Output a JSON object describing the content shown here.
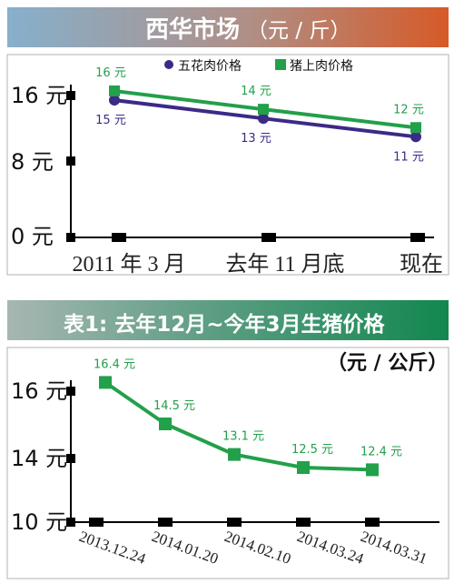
{
  "panel1": {
    "title": "西华市场",
    "unit": "（元 / 斤）",
    "legend": [
      "五花肉价格",
      "猪上肉价格"
    ],
    "y_ticks": [
      "16 元",
      "8 元",
      "0 元"
    ],
    "x_ticks": [
      "2011 年 3 月",
      "去年 11 月底",
      "现在"
    ],
    "labels_a": [
      "15 元",
      "13 元",
      "11 元"
    ],
    "labels_b": [
      "16 元",
      "14 元",
      "12 元"
    ]
  },
  "panel2": {
    "title": "表1: 去年12月~今年3月生猪价格",
    "unit": "（元 / 公斤）",
    "y_ticks": [
      "16 元",
      "14 元",
      "10 元"
    ],
    "x_ticks": [
      "2013.12.24",
      "2014.01.20",
      "2014.02.10",
      "2014.03.24",
      "2014.03.31"
    ],
    "labels": [
      "16.4 元",
      "14.5 元",
      "13.1 元",
      "12.5 元",
      "12.4 元"
    ]
  },
  "chart_data": [
    {
      "type": "line",
      "title": "西华市场",
      "categories": [
        "2011 年 3 月",
        "去年 11 月底",
        "现在"
      ],
      "series": [
        {
          "name": "五花肉价格",
          "values": [
            15,
            13,
            11
          ],
          "color": "#3b2a86"
        },
        {
          "name": "猪上肉价格",
          "values": [
            16,
            14,
            12
          ],
          "color": "#22a04a"
        }
      ],
      "ylim": [
        0,
        16
      ],
      "legend": "top-right",
      "grid": false
    },
    {
      "type": "line",
      "title": "表1: 去年12月~今年3月生猪价格",
      "categories": [
        "2013.12.24",
        "2014.01.20",
        "2014.02.10",
        "2014.03.24",
        "2014.03.31"
      ],
      "series": [
        {
          "values": [
            16.4,
            14.5,
            13.1,
            12.5,
            12.4
          ],
          "color": "#22a04a"
        }
      ],
      "ylim": [
        10,
        16
      ],
      "grid": false
    }
  ]
}
